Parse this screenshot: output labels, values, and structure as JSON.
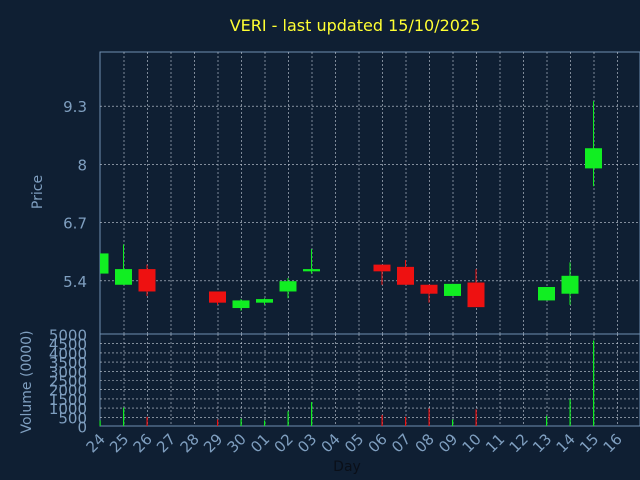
{
  "title": "VERI - last updated 15/10/2025",
  "colors": {
    "background": "#0f1f33",
    "title": "#ffff33",
    "axis_text": "#7f9fc0",
    "frame": "#6f8fb0",
    "grid": "#c8d0dc",
    "up": "#11ee22",
    "down": "#ee1111"
  },
  "chart_data": [
    {
      "type": "candlestick",
      "ylabel": "Price",
      "ylim": [
        4.2,
        10.5
      ],
      "yticks": [
        5.4,
        6.7,
        8,
        9.3
      ],
      "ytick_labels": [
        "5.4",
        "6.7",
        "8",
        "9.3"
      ],
      "grid": true,
      "x": [
        "24",
        "25",
        "26",
        "27",
        "28",
        "29",
        "30",
        "01",
        "02",
        "03",
        "04",
        "05",
        "06",
        "07",
        "08",
        "09",
        "10",
        "11",
        "12",
        "13",
        "14",
        "15",
        "16"
      ],
      "candles": [
        {
          "x": "24",
          "open": 5.55,
          "high": 6.0,
          "low": 5.55,
          "close": 6.0
        },
        {
          "x": "25",
          "open": 5.3,
          "high": 6.2,
          "low": 5.3,
          "close": 5.65
        },
        {
          "x": "26",
          "open": 5.65,
          "high": 5.75,
          "low": 5.05,
          "close": 5.15
        },
        {
          "x": "29",
          "open": 5.15,
          "high": 5.15,
          "low": 4.85,
          "close": 4.9
        },
        {
          "x": "30",
          "open": 4.78,
          "high": 4.98,
          "low": 4.72,
          "close": 4.95
        },
        {
          "x": "01",
          "open": 4.9,
          "high": 5.0,
          "low": 4.85,
          "close": 4.98
        },
        {
          "x": "02",
          "open": 5.15,
          "high": 5.45,
          "low": 5.0,
          "close": 5.38
        },
        {
          "x": "03",
          "open": 5.6,
          "high": 6.1,
          "low": 5.55,
          "close": 5.65
        },
        {
          "x": "06",
          "open": 5.75,
          "high": 5.75,
          "low": 5.3,
          "close": 5.6
        },
        {
          "x": "07",
          "open": 5.7,
          "high": 5.85,
          "low": 5.3,
          "close": 5.3
        },
        {
          "x": "08",
          "open": 5.3,
          "high": 5.3,
          "low": 4.9,
          "close": 5.1
        },
        {
          "x": "09",
          "open": 5.05,
          "high": 5.32,
          "low": 5.05,
          "close": 5.32
        },
        {
          "x": "10",
          "open": 5.35,
          "high": 5.65,
          "low": 4.8,
          "close": 4.8
        },
        {
          "x": "13",
          "open": 4.95,
          "high": 5.25,
          "low": 4.95,
          "close": 5.25
        },
        {
          "x": "14",
          "open": 5.1,
          "high": 5.8,
          "low": 4.85,
          "close": 5.5
        },
        {
          "x": "15",
          "open": 7.9,
          "high": 9.4,
          "low": 7.5,
          "close": 8.35
        }
      ]
    },
    {
      "type": "bar",
      "ylabel": "Volume (0000)",
      "xlabel": "Day",
      "ylim": [
        0,
        5000
      ],
      "yticks": [
        0,
        500,
        1000,
        1500,
        2000,
        2500,
        3000,
        3500,
        4000,
        4500,
        5000
      ],
      "ytick_labels": [
        "0",
        "500",
        "1000",
        "1500",
        "2000",
        "2500",
        "3000",
        "3500",
        "4000",
        "4500",
        "5000"
      ],
      "grid": true,
      "x": [
        "24",
        "25",
        "26",
        "27",
        "28",
        "29",
        "30",
        "01",
        "02",
        "03",
        "04",
        "05",
        "06",
        "07",
        "08",
        "09",
        "10",
        "11",
        "12",
        "13",
        "14",
        "15",
        "16"
      ],
      "bars": [
        {
          "x": "24",
          "value": 300,
          "dir": "up"
        },
        {
          "x": "25",
          "value": 1000,
          "dir": "up"
        },
        {
          "x": "26",
          "value": 500,
          "dir": "down"
        },
        {
          "x": "29",
          "value": 350,
          "dir": "down"
        },
        {
          "x": "30",
          "value": 400,
          "dir": "up"
        },
        {
          "x": "01",
          "value": 300,
          "dir": "up"
        },
        {
          "x": "02",
          "value": 800,
          "dir": "up"
        },
        {
          "x": "03",
          "value": 1300,
          "dir": "up"
        },
        {
          "x": "06",
          "value": 600,
          "dir": "down"
        },
        {
          "x": "07",
          "value": 500,
          "dir": "down"
        },
        {
          "x": "08",
          "value": 950,
          "dir": "down"
        },
        {
          "x": "09",
          "value": 350,
          "dir": "up"
        },
        {
          "x": "10",
          "value": 900,
          "dir": "down"
        },
        {
          "x": "13",
          "value": 550,
          "dir": "up"
        },
        {
          "x": "14",
          "value": 1450,
          "dir": "up"
        },
        {
          "x": "15",
          "value": 4650,
          "dir": "up"
        }
      ]
    }
  ]
}
